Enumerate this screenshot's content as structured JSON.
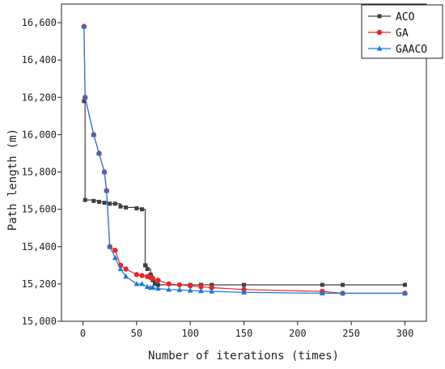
{
  "chart_data": {
    "type": "line",
    "title": "",
    "xlabel": "Number of iterations (times)",
    "ylabel": "Path length (m)",
    "xlim": [
      -20,
      320
    ],
    "ylim": [
      15000,
      16700
    ],
    "x_ticks": [
      0,
      50,
      100,
      150,
      200,
      250,
      300
    ],
    "y_ticks": [
      15000,
      15200,
      15400,
      15600,
      15800,
      16000,
      16200,
      16400,
      16600
    ],
    "y_tick_labels": [
      "15,000",
      "15,200",
      "15,400",
      "15,600",
      "15,800",
      "16,000",
      "16,200",
      "16,400",
      "16,600"
    ],
    "grid": false,
    "legend_position": "top-right",
    "series": [
      {
        "name": "ACO",
        "color": "#404040",
        "marker": "square",
        "step": true,
        "x": [
          1,
          2,
          10,
          15,
          20,
          25,
          30,
          35,
          40,
          50,
          55,
          58,
          60,
          63,
          65,
          67,
          70,
          100,
          110,
          120,
          150,
          223,
          242,
          300
        ],
        "y": [
          16180,
          15650,
          15645,
          15640,
          15635,
          15630,
          15630,
          15615,
          15610,
          15605,
          15600,
          15300,
          15280,
          15250,
          15220,
          15200,
          15195,
          15195,
          15195,
          15195,
          15195,
          15195,
          15195,
          15195
        ]
      },
      {
        "name": "GA",
        "color": "#e8262a",
        "marker": "circle",
        "step": false,
        "x": [
          1,
          2,
          10,
          15,
          20,
          22,
          25,
          30,
          35,
          40,
          50,
          55,
          60,
          63,
          65,
          70,
          80,
          90,
          100,
          110,
          120,
          150,
          223,
          242,
          300
        ],
        "y": [
          16580,
          16200,
          16000,
          15900,
          15800,
          15700,
          15400,
          15380,
          15300,
          15280,
          15250,
          15245,
          15240,
          15235,
          15230,
          15220,
          15200,
          15195,
          15190,
          15185,
          15180,
          15170,
          15160,
          15150,
          15150
        ]
      },
      {
        "name": "GAACO",
        "color": "#1a78d8",
        "marker": "triangle",
        "step": false,
        "x": [
          1,
          2,
          10,
          15,
          20,
          22,
          25,
          30,
          35,
          40,
          50,
          55,
          60,
          63,
          65,
          70,
          80,
          90,
          100,
          110,
          120,
          150,
          223,
          242,
          300
        ],
        "y": [
          16580,
          16200,
          16000,
          15900,
          15800,
          15700,
          15400,
          15340,
          15280,
          15240,
          15200,
          15200,
          15185,
          15180,
          15180,
          15175,
          15170,
          15168,
          15165,
          15162,
          15160,
          15155,
          15150,
          15150,
          15150
        ]
      }
    ]
  }
}
